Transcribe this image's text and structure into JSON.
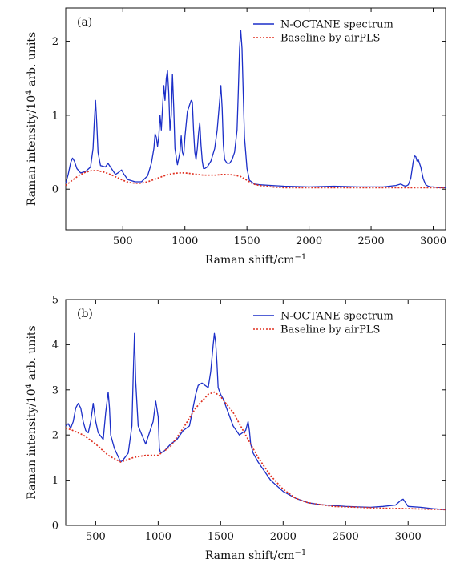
{
  "chart_data": [
    {
      "type": "line",
      "panel_label": "(a)",
      "xlabel": "Raman shift/cm",
      "xlabel_sup": "−1",
      "ylabel": "Raman intensity/10",
      "ylabel_sup": "4",
      "ylabel_suffix": " arb. units",
      "xlim": [
        40,
        3100
      ],
      "ylim": [
        -0.55,
        2.45
      ],
      "xticks": [
        500,
        1000,
        1500,
        2000,
        2500,
        3000
      ],
      "yticks": [
        0,
        1,
        2
      ],
      "legend_position": "top-right",
      "colors": {
        "spectrum": "#1c2fc8",
        "baseline": "#e03020"
      },
      "series": [
        {
          "name": "N-OCTANE spectrum",
          "style": "solid",
          "x": [
            40,
            60,
            80,
            95,
            110,
            130,
            160,
            200,
            240,
            260,
            270,
            280,
            290,
            300,
            320,
            360,
            380,
            400,
            420,
            440,
            460,
            490,
            510,
            540,
            600,
            650,
            700,
            730,
            750,
            760,
            770,
            780,
            790,
            800,
            810,
            820,
            830,
            840,
            850,
            860,
            870,
            880,
            890,
            900,
            910,
            920,
            940,
            960,
            970,
            980,
            990,
            1000,
            1020,
            1040,
            1050,
            1060,
            1070,
            1080,
            1090,
            1100,
            1110,
            1120,
            1130,
            1140,
            1150,
            1160,
            1180,
            1210,
            1240,
            1260,
            1280,
            1290,
            1300,
            1310,
            1320,
            1340,
            1360,
            1380,
            1400,
            1420,
            1430,
            1440,
            1450,
            1460,
            1470,
            1480,
            1500,
            1520,
            1560,
            1600,
            1700,
            1800,
            2000,
            2200,
            2400,
            2600,
            2700,
            2740,
            2760,
            2780,
            2800,
            2820,
            2840,
            2850,
            2860,
            2870,
            2880,
            2900,
            2920,
            2940,
            2960,
            2980,
            3000,
            3050,
            3100
          ],
          "y": [
            0.08,
            0.2,
            0.36,
            0.42,
            0.38,
            0.28,
            0.22,
            0.24,
            0.3,
            0.55,
            0.9,
            1.2,
            0.9,
            0.5,
            0.32,
            0.3,
            0.35,
            0.3,
            0.25,
            0.2,
            0.22,
            0.26,
            0.2,
            0.13,
            0.1,
            0.1,
            0.18,
            0.35,
            0.55,
            0.75,
            0.7,
            0.58,
            0.72,
            1.0,
            0.8,
            1.1,
            1.4,
            1.2,
            1.5,
            1.6,
            1.3,
            0.8,
            1.0,
            1.55,
            1.1,
            0.55,
            0.33,
            0.5,
            0.72,
            0.5,
            0.45,
            0.7,
            1.05,
            1.15,
            1.2,
            1.18,
            0.8,
            0.5,
            0.4,
            0.55,
            0.75,
            0.9,
            0.6,
            0.38,
            0.28,
            0.28,
            0.3,
            0.38,
            0.55,
            0.8,
            1.2,
            1.4,
            1.1,
            0.6,
            0.4,
            0.35,
            0.35,
            0.4,
            0.5,
            0.8,
            1.3,
            1.9,
            2.15,
            1.9,
            1.3,
            0.7,
            0.28,
            0.12,
            0.07,
            0.06,
            0.05,
            0.04,
            0.03,
            0.04,
            0.03,
            0.03,
            0.05,
            0.07,
            0.05,
            0.04,
            0.06,
            0.15,
            0.38,
            0.45,
            0.44,
            0.38,
            0.4,
            0.3,
            0.14,
            0.06,
            0.04,
            0.03,
            0.03,
            0.02,
            0.02
          ]
        },
        {
          "name": "Baseline by airPLS",
          "style": "dotted",
          "x": [
            40,
            100,
            150,
            200,
            250,
            300,
            350,
            400,
            450,
            500,
            550,
            600,
            650,
            700,
            750,
            800,
            850,
            900,
            950,
            1000,
            1050,
            1100,
            1150,
            1200,
            1250,
            1300,
            1350,
            1400,
            1450,
            1500,
            1550,
            1600,
            1700,
            1800,
            2000,
            2500,
            3000,
            3100
          ],
          "y": [
            0.05,
            0.13,
            0.19,
            0.23,
            0.25,
            0.25,
            0.23,
            0.2,
            0.16,
            0.12,
            0.09,
            0.08,
            0.08,
            0.1,
            0.13,
            0.16,
            0.19,
            0.21,
            0.22,
            0.22,
            0.21,
            0.2,
            0.19,
            0.19,
            0.19,
            0.2,
            0.2,
            0.19,
            0.17,
            0.12,
            0.07,
            0.05,
            0.03,
            0.02,
            0.02,
            0.02,
            0.02,
            0.02
          ]
        }
      ]
    },
    {
      "type": "line",
      "panel_label": "(b)",
      "xlabel": "Raman shift/cm",
      "xlabel_sup": "−1",
      "ylabel": "Raman intensity/10",
      "ylabel_sup": "4",
      "ylabel_suffix": " arb. units",
      "xlim": [
        260,
        3300
      ],
      "ylim": [
        0,
        5
      ],
      "xticks": [
        500,
        1000,
        1500,
        2000,
        2500,
        3000
      ],
      "yticks": [
        0,
        1,
        2,
        3,
        4,
        5
      ],
      "legend_position": "top-right",
      "colors": {
        "spectrum": "#1c2fc8",
        "baseline": "#e03020"
      },
      "series": [
        {
          "name": "N-OCTANE spectrum",
          "style": "solid",
          "x": [
            260,
            280,
            300,
            320,
            340,
            360,
            380,
            400,
            420,
            440,
            460,
            480,
            500,
            520,
            560,
            580,
            600,
            610,
            620,
            650,
            700,
            720,
            760,
            790,
            800,
            810,
            820,
            840,
            900,
            960,
            980,
            1000,
            1010,
            1020,
            1050,
            1100,
            1150,
            1200,
            1250,
            1300,
            1320,
            1350,
            1400,
            1420,
            1440,
            1450,
            1460,
            1470,
            1480,
            1500,
            1520,
            1560,
            1600,
            1650,
            1700,
            1720,
            1730,
            1740,
            1760,
            1800,
            1900,
            2000,
            2100,
            2200,
            2300,
            2400,
            2500,
            2600,
            2700,
            2800,
            2900,
            2940,
            2960,
            2980,
            3000,
            3100,
            3200,
            3300
          ],
          "y": [
            2.2,
            2.25,
            2.15,
            2.3,
            2.6,
            2.7,
            2.6,
            2.3,
            2.1,
            2.05,
            2.3,
            2.7,
            2.3,
            2.05,
            1.9,
            2.5,
            2.95,
            2.6,
            2.0,
            1.7,
            1.4,
            1.45,
            1.6,
            2.2,
            3.3,
            4.25,
            3.2,
            2.2,
            1.8,
            2.3,
            2.75,
            2.4,
            1.7,
            1.6,
            1.65,
            1.8,
            1.9,
            2.1,
            2.2,
            2.9,
            3.1,
            3.15,
            3.05,
            3.4,
            4.0,
            4.25,
            4.05,
            3.6,
            3.05,
            2.9,
            2.8,
            2.5,
            2.2,
            2.0,
            2.1,
            2.3,
            2.1,
            1.8,
            1.6,
            1.4,
            1.0,
            0.75,
            0.6,
            0.5,
            0.46,
            0.44,
            0.42,
            0.41,
            0.4,
            0.42,
            0.45,
            0.55,
            0.58,
            0.5,
            0.42,
            0.4,
            0.37,
            0.35
          ]
        },
        {
          "name": "Baseline by airPLS",
          "style": "dotted",
          "x": [
            260,
            300,
            400,
            500,
            600,
            700,
            800,
            900,
            1000,
            1100,
            1200,
            1300,
            1400,
            1450,
            1500,
            1600,
            1700,
            1800,
            1900,
            2000,
            2100,
            2200,
            2400,
            2600,
            2800,
            3000,
            3300
          ],
          "y": [
            2.15,
            2.12,
            2.0,
            1.8,
            1.55,
            1.4,
            1.5,
            1.55,
            1.55,
            1.75,
            2.15,
            2.6,
            2.9,
            2.95,
            2.85,
            2.5,
            2.0,
            1.5,
            1.1,
            0.8,
            0.6,
            0.5,
            0.42,
            0.4,
            0.38,
            0.37,
            0.35
          ]
        }
      ]
    }
  ]
}
